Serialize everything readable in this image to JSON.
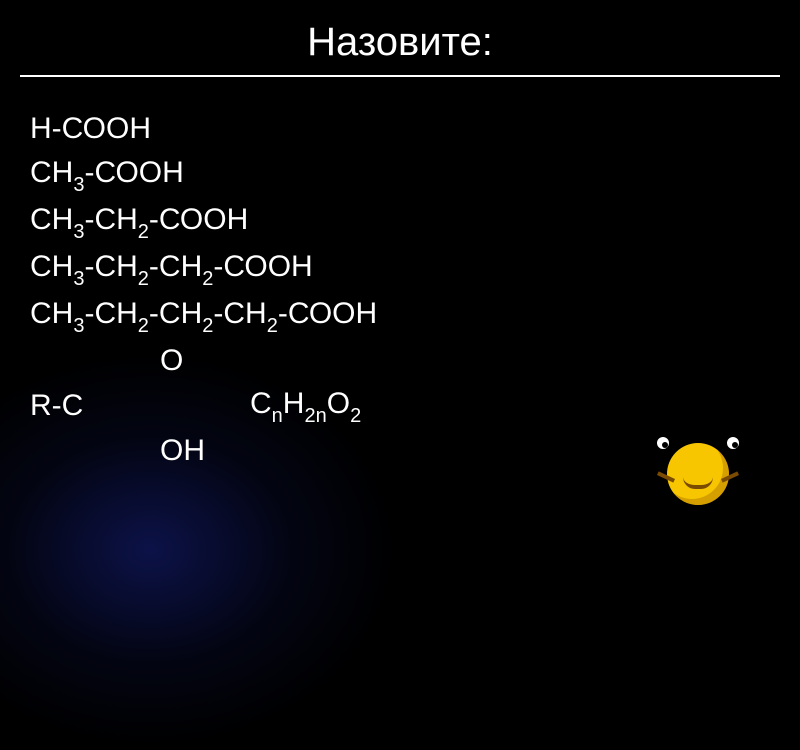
{
  "title": "Назовите:",
  "lines": {
    "l1": "Н-СООН",
    "l2_a": "СН",
    "l2_b": "-СООН",
    "l3_a": "СН",
    "l3_b": "-СН",
    "l3_c": "-СООН",
    "l4_a": "СН",
    "l4_b": "-СН",
    "l4_c": "-СН",
    "l4_d": "-СООН",
    "l5_a": "СН",
    "l5_b": "-СН",
    "l5_c": "-СН",
    "l5_d": "-СН",
    "l5_e": "-СООН",
    "l6": "О",
    "l7_a": "R-C",
    "l7_b": "С",
    "l7_c": "Н",
    "l7_d": "О",
    "l8": "ОН"
  },
  "sub": {
    "n2": "2",
    "n3": "3",
    "nn": "n",
    "n2n": "2n"
  },
  "colors": {
    "background": "#000000",
    "text": "#ffffff",
    "glow": "#141e78",
    "smiley": "#f7c600"
  },
  "fontsize": {
    "title": 40,
    "body": 30,
    "sub": 20
  }
}
